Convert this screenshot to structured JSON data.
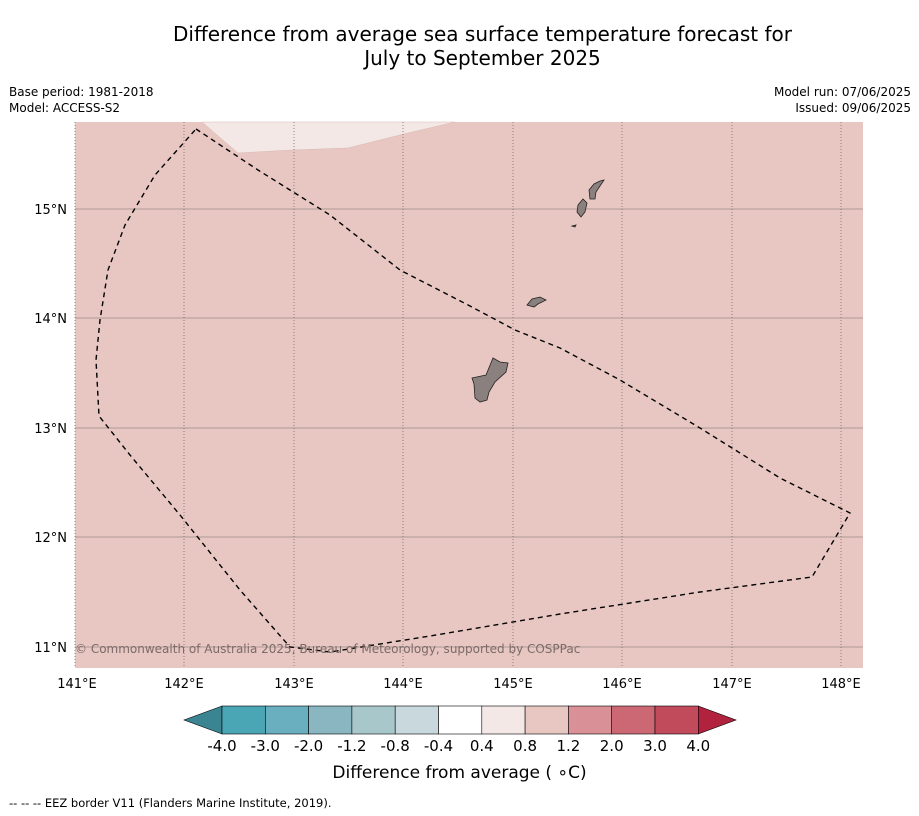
{
  "title": {
    "line1": "Difference from average sea surface temperature forecast for",
    "line2": "July to September 2025"
  },
  "meta_left": {
    "base_period": "Base period: 1981-2018",
    "model": "Model: ACCESS-S2"
  },
  "meta_right": {
    "model_run": "Model run: 07/06/2025",
    "issued": "Issued: 09/06/2025"
  },
  "map": {
    "lon_ticks": [
      "141°E",
      "142°E",
      "143°E",
      "144°E",
      "145°E",
      "146°E",
      "147°E",
      "148°E"
    ],
    "lat_ticks": [
      "15°N",
      "14°N",
      "13°N",
      "12°N",
      "11°N"
    ],
    "background_class": "0.8 to 1.2",
    "background_color": "#e8c7c2",
    "patch_class": "0.4 to 0.8",
    "patch_color": "#f3e8e6",
    "land_color": "#8a807e",
    "copyright": "© Commonwealth of Australia 2025, Bureau of Meteorology, supported by COSPPac"
  },
  "colorbar": {
    "label": "Difference from average ( ∘C)",
    "ticks": [
      "-4.0",
      "-3.0",
      "-2.0",
      "-1.2",
      "-0.8",
      "-0.4",
      "0.4",
      "0.8",
      "1.2",
      "2.0",
      "3.0",
      "4.0"
    ],
    "colors": [
      "#3b8593",
      "#4aa5b5",
      "#6aafbf",
      "#8ab6c2",
      "#a8c7cb",
      "#c9d8dc",
      "#ffffff",
      "#f3e8e6",
      "#e8c7c2",
      "#d99097",
      "#cb6874",
      "#c14a5b",
      "#b0223d"
    ]
  },
  "footer": "--  --  -- EEZ border V11 (Flanders Marine Institute, 2019)."
}
